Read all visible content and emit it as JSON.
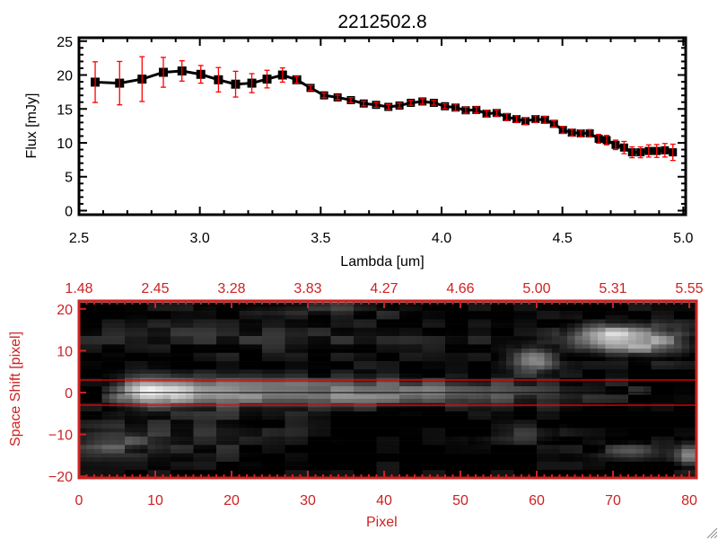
{
  "chart_data": [
    {
      "type": "line",
      "title": "2212502.8",
      "xlabel": "Lambda [um]",
      "ylabel": "Flux [mJy]",
      "xlim": [
        2.5,
        5.01
      ],
      "ylim": [
        -0.6,
        25.5
      ],
      "xticks": [
        "2.5",
        "3.0",
        "3.5",
        "4.0",
        "4.5",
        "5.0"
      ],
      "xtick_values": [
        2.5,
        3.0,
        3.5,
        4.0,
        4.5,
        5.0
      ],
      "yticks": [
        "0",
        "5",
        "10",
        "15",
        "20",
        "25"
      ],
      "ytick_values": [
        0,
        5,
        10,
        15,
        20,
        25
      ],
      "grid": false,
      "line_color": "#000000",
      "error_color": "#ff0000",
      "series": [
        {
          "name": "flux",
          "x": [
            2.567,
            2.668,
            2.761,
            2.849,
            2.926,
            3.004,
            3.077,
            3.148,
            3.215,
            3.278,
            3.342,
            3.401,
            3.458,
            3.514,
            3.57,
            3.625,
            3.678,
            3.729,
            3.78,
            3.826,
            3.873,
            3.921,
            3.968,
            4.014,
            4.058,
            4.1,
            4.144,
            4.186,
            4.228,
            4.27,
            4.31,
            4.347,
            4.389,
            4.428,
            4.465,
            4.502,
            4.539,
            4.576,
            4.613,
            4.65,
            4.683,
            4.72,
            4.755,
            4.788,
            4.823,
            4.857,
            4.89,
            4.924,
            4.957
          ],
          "y": [
            18.95,
            18.8,
            19.4,
            20.4,
            20.6,
            20.1,
            19.3,
            18.65,
            18.8,
            19.4,
            20.0,
            19.3,
            18.1,
            17.0,
            16.7,
            16.3,
            15.8,
            15.6,
            15.3,
            15.5,
            15.9,
            16.1,
            15.9,
            15.4,
            15.2,
            14.8,
            14.85,
            14.3,
            14.4,
            13.8,
            13.5,
            13.2,
            13.5,
            13.4,
            12.8,
            11.9,
            11.5,
            11.4,
            11.4,
            10.6,
            10.4,
            9.7,
            9.3,
            8.6,
            8.6,
            8.8,
            8.8,
            8.9,
            8.6
          ],
          "yerr": [
            3.0,
            3.2,
            3.3,
            2.2,
            1.5,
            1.3,
            1.8,
            1.9,
            1.4,
            1.3,
            1.05,
            0.5,
            0.35,
            0.35,
            0.35,
            0.35,
            0.35,
            0.35,
            0.35,
            0.35,
            0.35,
            0.4,
            0.35,
            0.35,
            0.5,
            0.45,
            0.45,
            0.5,
            0.45,
            0.5,
            0.5,
            0.5,
            0.5,
            0.5,
            0.45,
            0.5,
            0.5,
            0.5,
            0.55,
            0.65,
            0.7,
            0.7,
            0.9,
            0.8,
            0.8,
            0.9,
            0.95,
            1.0,
            1.2
          ]
        }
      ]
    },
    {
      "type": "heatmap",
      "xlabel": "Pixel",
      "ylabel": "Space Shift [pixel]",
      "xlim": [
        0,
        81
      ],
      "ylim": [
        -21,
        21
      ],
      "xticks": [
        "0",
        "10",
        "20",
        "30",
        "40",
        "50",
        "60",
        "70",
        "80"
      ],
      "xtick_values": [
        0,
        10,
        20,
        30,
        40,
        50,
        60,
        70,
        80
      ],
      "top_xticks": [
        "1.48",
        "2.45",
        "3.28",
        "3.83",
        "4.27",
        "4.66",
        "5.00",
        "5.31",
        "5.55"
      ],
      "yticks": [
        "20",
        "10",
        "0",
        "−10",
        "−20"
      ],
      "ytick_values": [
        20,
        10,
        0,
        -10,
        -20
      ],
      "axis_color": "#cc2222",
      "aperture_lines": [
        3,
        -3
      ],
      "aperture_color": "#ff0000",
      "center_line": 0,
      "colormap": "gray",
      "trace": {
        "center": 0,
        "sigma": 2.3,
        "profile": [
          [
            3,
            0.15
          ],
          [
            6,
            0.55
          ],
          [
            9,
            1.0
          ],
          [
            12,
            0.85
          ],
          [
            16,
            0.65
          ],
          [
            22,
            0.58
          ],
          [
            30,
            0.55
          ],
          [
            40,
            0.5
          ],
          [
            50,
            0.4
          ],
          [
            57,
            0.28
          ],
          [
            62,
            0.2
          ],
          [
            68,
            0.14
          ],
          [
            74,
            0.1
          ],
          [
            75,
            0.0
          ]
        ]
      },
      "sources": [
        {
          "x": 69.5,
          "y": 13,
          "amp": 0.8,
          "sx": 3.5,
          "sy": 2.3
        },
        {
          "x": 76,
          "y": 12,
          "amp": 0.45,
          "sx": 3,
          "sy": 2.5
        },
        {
          "x": 59.5,
          "y": 8,
          "amp": 0.55,
          "sx": 2,
          "sy": 2
        },
        {
          "x": 80,
          "y": -15,
          "amp": 0.6,
          "sx": 1.3,
          "sy": 1.8
        },
        {
          "x": 72,
          "y": -14,
          "amp": 0.3,
          "sx": 3,
          "sy": 1.5
        },
        {
          "x": 58,
          "y": -10,
          "amp": 0.18,
          "sx": 4,
          "sy": 2
        },
        {
          "x": 4,
          "y": -12,
          "amp": 0.28,
          "sx": 4,
          "sy": 2
        },
        {
          "x": 30,
          "y": 20,
          "amp": 0.2,
          "sx": 8,
          "sy": 1.5
        },
        {
          "x": 20,
          "y": 13,
          "amp": 0.14,
          "sx": 25,
          "sy": 3
        },
        {
          "x": 15,
          "y": -10,
          "amp": 0.15,
          "sx": 10,
          "sy": 4
        }
      ]
    }
  ]
}
